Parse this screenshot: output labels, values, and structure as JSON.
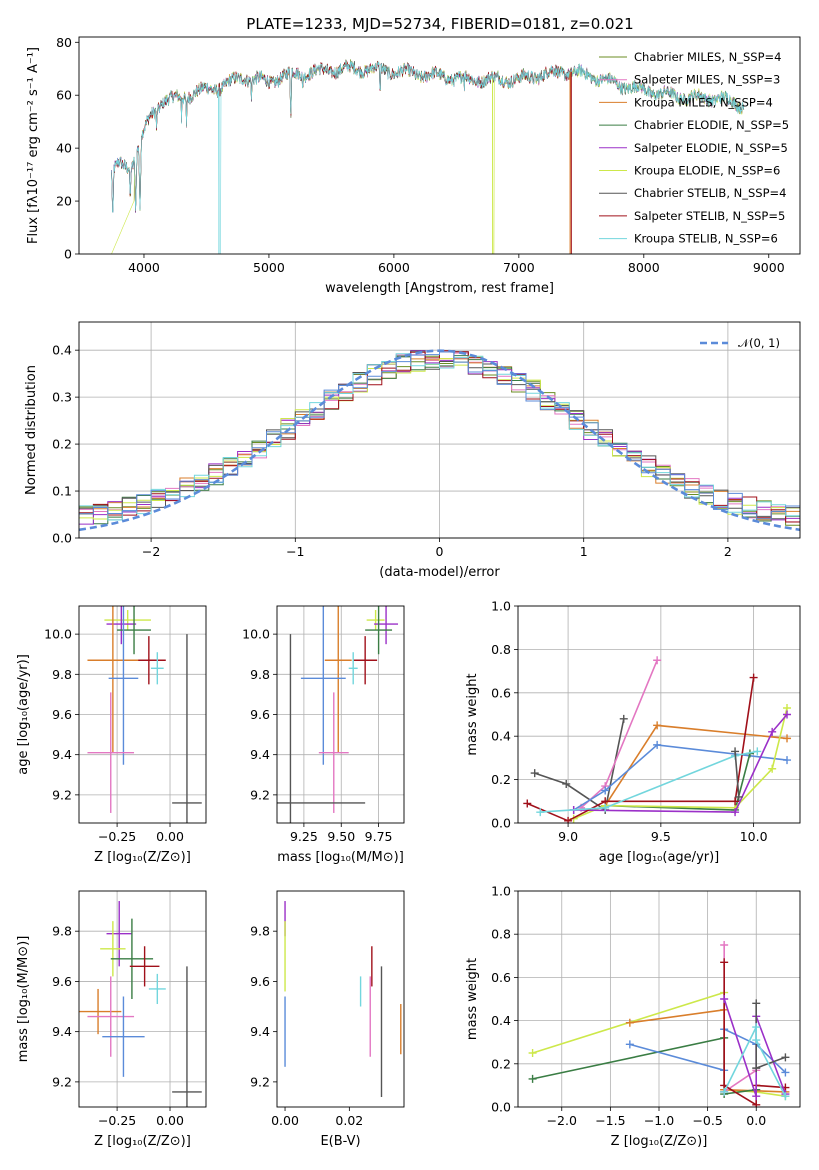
{
  "colors": {
    "chabrier_miles": "#6b8e23",
    "salpeter_miles": "#e377c2",
    "kroupa_miles": "#d97e2b",
    "chabrier_elodie": "#3a7d44",
    "salpeter_elodie": "#9b30c8",
    "kroupa_elodie": "#cde84a",
    "chabrier_stelib": "#555555",
    "salpeter_stelib": "#a0101a",
    "kroupa_stelib": "#72d6dd",
    "blue": "#5b8bd9",
    "grid": "#b0b0b0"
  },
  "chart_data": [
    {
      "id": "spectrum",
      "type": "line",
      "title": "PLATE=1233, MJD=52734, FIBERID=0181, z=0.021",
      "xlabel": "wavelength [Angstrom, rest frame]",
      "ylabel": "Flux [fλ10⁻¹⁷ erg cm⁻² s⁻¹ A⁻¹]",
      "xlim": [
        3480,
        9250
      ],
      "ylim": [
        0,
        82
      ],
      "xticks": [
        4000,
        5000,
        6000,
        7000,
        8000,
        9000
      ],
      "yticks": [
        0,
        20,
        40,
        60,
        80
      ],
      "grid": false,
      "legend_position": "top-right",
      "legend": [
        {
          "label": "Chabrier MILES, N_SSP=4",
          "color_key": "chabrier_miles"
        },
        {
          "label": "Salpeter MILES, N_SSP=3",
          "color_key": "salpeter_miles"
        },
        {
          "label": "Kroupa MILES, N_SSP=4",
          "color_key": "kroupa_miles"
        },
        {
          "label": "Chabrier ELODIE, N_SSP=5",
          "color_key": "chabrier_elodie"
        },
        {
          "label": "Salpeter ELODIE, N_SSP=5",
          "color_key": "salpeter_elodie"
        },
        {
          "label": "Kroupa ELODIE, N_SSP=6",
          "color_key": "kroupa_elodie"
        },
        {
          "label": "Chabrier STELIB, N_SSP=4",
          "color_key": "chabrier_stelib"
        },
        {
          "label": "Salpeter STELIB, N_SSP=5",
          "color_key": "salpeter_stelib"
        },
        {
          "label": "Kroupa STELIB, N_SSP=6",
          "color_key": "kroupa_stelib"
        }
      ],
      "continuum": [
        [
          3740,
          30
        ],
        [
          3800,
          34
        ],
        [
          3900,
          33
        ],
        [
          3980,
          44
        ],
        [
          4050,
          52
        ],
        [
          4150,
          58
        ],
        [
          4300,
          59
        ],
        [
          4400,
          61
        ],
        [
          4600,
          63
        ],
        [
          4800,
          67
        ],
        [
          5000,
          65
        ],
        [
          5100,
          67
        ],
        [
          5200,
          68
        ],
        [
          5400,
          69
        ],
        [
          5600,
          70
        ],
        [
          5800,
          70
        ],
        [
          6000,
          69
        ],
        [
          6200,
          68
        ],
        [
          6400,
          67
        ],
        [
          6600,
          66
        ],
        [
          6800,
          66
        ],
        [
          7000,
          66
        ],
        [
          7200,
          68
        ],
        [
          7400,
          69
        ],
        [
          7600,
          67
        ],
        [
          7800,
          64
        ],
        [
          8000,
          62
        ],
        [
          8200,
          60
        ],
        [
          8400,
          59
        ],
        [
          8600,
          59
        ],
        [
          8800,
          56
        ]
      ],
      "dips": [
        [
          3750,
          12
        ],
        [
          3890,
          18
        ],
        [
          3933,
          14
        ],
        [
          3968,
          17
        ],
        [
          4101,
          45
        ],
        [
          4300,
          50
        ],
        [
          4340,
          48
        ],
        [
          4861,
          56
        ],
        [
          5175,
          50
        ],
        [
          5270,
          59
        ],
        [
          5890,
          58
        ],
        [
          6563,
          60
        ]
      ],
      "cutoffs": [
        {
          "color_key": "kroupa_elodie",
          "from": 3740,
          "to": 3920
        },
        {
          "color_key": "kroupa_stelib",
          "from": 4600,
          "to": 4615
        },
        {
          "color_key": "kroupa_elodie",
          "from": 6790,
          "to": 6800
        },
        {
          "color_key": "kroupa_miles",
          "from": 7410,
          "to": 9250
        },
        {
          "color_key": "salpeter_stelib",
          "from": 7420,
          "to": 9250
        }
      ]
    },
    {
      "id": "residuals",
      "type": "line",
      "xlabel": "(data-model)/error",
      "ylabel": "Normed distribution",
      "xlim": [
        -2.5,
        2.5
      ],
      "ylim": [
        0,
        0.46
      ],
      "xticks": [
        -2,
        -1,
        0,
        1,
        2
      ],
      "yticks": [
        0.0,
        0.1,
        0.2,
        0.3,
        0.4
      ],
      "grid": true,
      "legend_position": "top-right",
      "reference_curve": {
        "label": "𝒩(0, 1)",
        "mean": 0,
        "sigma": 1,
        "color_key": "blue"
      },
      "histogram_bin_width": 0.1,
      "histogram_colors": [
        "chabrier_miles",
        "salpeter_miles",
        "kroupa_miles",
        "chabrier_elodie",
        "salpeter_elodie",
        "kroupa_elodie",
        "chabrier_stelib",
        "salpeter_stelib",
        "kroupa_stelib",
        "blue"
      ]
    },
    {
      "id": "age-vs-Z",
      "type": "scatter",
      "xlabel": "Z [log₁₀(Z/Z⊙)]",
      "ylabel": "age  [log₁₀(age/yr)]",
      "xlim": [
        -0.43,
        0.17
      ],
      "ylim": [
        9.06,
        10.14
      ],
      "xticks": [
        -0.25,
        0.0
      ],
      "ytick_values": [
        9.2,
        9.4,
        9.6,
        9.8,
        10.0
      ],
      "grid": true,
      "points": [
        {
          "color_key": "kroupa_elodie",
          "x": -0.2,
          "xerr": 0.11,
          "y": 10.07,
          "yerr": 0.05
        },
        {
          "color_key": "salpeter_elodie",
          "x": -0.23,
          "xerr": 0.07,
          "y": 10.05,
          "yerr": 0.1
        },
        {
          "color_key": "chabrier_elodie",
          "x": -0.17,
          "xerr": 0.08,
          "y": 10.02,
          "yerr": 0.12
        },
        {
          "color_key": "salpeter_stelib",
          "x": -0.1,
          "xerr": 0.08,
          "y": 9.87,
          "yerr": 0.12
        },
        {
          "color_key": "kroupa_miles",
          "x": -0.27,
          "xerr": 0.12,
          "y": 9.87,
          "yerr": 0.46
        },
        {
          "color_key": "kroupa_stelib",
          "x": -0.06,
          "xerr": 0.03,
          "y": 9.83,
          "yerr": 0.08
        },
        {
          "color_key": "blue",
          "x": -0.22,
          "xerr": 0.07,
          "y": 9.78,
          "yerr": 0.43
        },
        {
          "color_key": "salpeter_miles",
          "x": -0.28,
          "xerr": 0.11,
          "y": 9.41,
          "yerr": 0.3
        },
        {
          "color_key": "chabrier_stelib",
          "x": 0.08,
          "xerr": 0.07,
          "y": 9.16,
          "yerr": 0.84
        }
      ]
    },
    {
      "id": "age-vs-mass",
      "type": "scatter",
      "xlabel": "mass [log₁₀(M/M⊙)]",
      "ylabel": "",
      "xlim": [
        9.07,
        9.92
      ],
      "ylim": [
        9.06,
        10.14
      ],
      "xticks": [
        9.25,
        9.5,
        9.75
      ],
      "ytick_values": [
        9.2,
        9.4,
        9.6,
        9.8,
        10.0
      ],
      "grid": true,
      "points": [
        {
          "color_key": "kroupa_elodie",
          "x": 9.73,
          "xerr": 0.06,
          "y": 10.07,
          "yerr": 0.05
        },
        {
          "color_key": "salpeter_elodie",
          "x": 9.8,
          "xerr": 0.08,
          "y": 10.05,
          "yerr": 0.1
        },
        {
          "color_key": "chabrier_elodie",
          "x": 9.75,
          "xerr": 0.09,
          "y": 10.02,
          "yerr": 0.12
        },
        {
          "color_key": "salpeter_stelib",
          "x": 9.66,
          "xerr": 0.08,
          "y": 9.87,
          "yerr": 0.12
        },
        {
          "color_key": "kroupa_miles",
          "x": 9.48,
          "xerr": 0.09,
          "y": 9.87,
          "yerr": 0.46
        },
        {
          "color_key": "kroupa_stelib",
          "x": 9.58,
          "xerr": 0.03,
          "y": 9.83,
          "yerr": 0.08
        },
        {
          "color_key": "blue",
          "x": 9.38,
          "xerr": 0.15,
          "y": 9.78,
          "yerr": 0.43
        },
        {
          "color_key": "salpeter_miles",
          "x": 9.45,
          "xerr": 0.1,
          "y": 9.41,
          "yerr": 0.3
        },
        {
          "color_key": "chabrier_stelib",
          "x": 9.16,
          "xerr": 0.5,
          "y": 9.16,
          "yerr": 0.84
        }
      ]
    },
    {
      "id": "weight-vs-age",
      "type": "line",
      "xlabel": "age  [log₁₀(age/yr)]",
      "ylabel": "mass weight",
      "xlim": [
        8.73,
        10.25
      ],
      "ylim": [
        0,
        1.0
      ],
      "xticks": [
        9.0,
        9.5,
        10.0
      ],
      "yticks": [
        0.0,
        0.2,
        0.4,
        0.6,
        0.8,
        1.0
      ],
      "grid": true,
      "series": [
        {
          "color_key": "chabrier_stelib",
          "x": [
            8.82,
            8.99,
            9.2,
            9.3
          ],
          "y": [
            0.23,
            0.18,
            0.06,
            0.48
          ]
        },
        {
          "color_key": "salpeter_miles",
          "x": [
            9.07,
            9.2,
            9.48
          ],
          "y": [
            0.07,
            0.17,
            0.75
          ]
        },
        {
          "color_key": "kroupa_miles",
          "x": [
            9.2,
            9.48,
            10.18
          ],
          "y": [
            0.08,
            0.45,
            0.39
          ]
        },
        {
          "color_key": "blue",
          "x": [
            9.03,
            9.2,
            9.48,
            10.18
          ],
          "y": [
            0.06,
            0.15,
            0.36,
            0.29
          ]
        },
        {
          "color_key": "chabrier_elodie",
          "x": [
            9.2,
            9.9,
            9.98
          ],
          "y": [
            0.08,
            0.06,
            0.32
          ]
        },
        {
          "color_key": "kroupa_elodie",
          "x": [
            9.03,
            9.2,
            9.9,
            10.1,
            10.18
          ],
          "y": [
            0.02,
            0.08,
            0.07,
            0.25,
            0.53
          ]
        },
        {
          "color_key": "salpeter_elodie",
          "x": [
            9.03,
            9.9,
            10.1,
            10.18
          ],
          "y": [
            0.06,
            0.05,
            0.42,
            0.5
          ]
        },
        {
          "color_key": "salpeter_stelib",
          "x": [
            8.78,
            9.0,
            9.2,
            9.9,
            10.0
          ],
          "y": [
            0.09,
            0.01,
            0.1,
            0.1,
            0.67
          ]
        },
        {
          "color_key": "kroupa_stelib",
          "x": [
            8.85,
            9.2,
            9.9,
            10.02
          ],
          "y": [
            0.05,
            0.07,
            0.31,
            0.33
          ]
        },
        {
          "color_key": "chabrier_stelib",
          "x": [
            9.9,
            9.92
          ],
          "y": [
            0.33,
            0.12
          ]
        }
      ]
    },
    {
      "id": "mass-vs-Z",
      "type": "scatter",
      "xlabel": "Z [log₁₀(Z/Z⊙)]",
      "ylabel": "mass [log₁₀(M/M⊙)]",
      "xlim": [
        -0.43,
        0.17
      ],
      "ylim": [
        9.1,
        9.96
      ],
      "xticks": [
        -0.25,
        0.0
      ],
      "ytick_values": [
        9.2,
        9.4,
        9.6,
        9.8
      ],
      "grid": true,
      "points": [
        {
          "color_key": "salpeter_elodie",
          "x": -0.24,
          "xerr": 0.06,
          "y": 9.79,
          "yerr": 0.13
        },
        {
          "color_key": "kroupa_elodie",
          "x": -0.27,
          "xerr": 0.06,
          "y": 9.73,
          "yerr": 0.11
        },
        {
          "color_key": "chabrier_elodie",
          "x": -0.18,
          "xerr": 0.1,
          "y": 9.69,
          "yerr": 0.16
        },
        {
          "color_key": "salpeter_stelib",
          "x": -0.12,
          "xerr": 0.07,
          "y": 9.66,
          "yerr": 0.08
        },
        {
          "color_key": "kroupa_stelib",
          "x": -0.06,
          "xerr": 0.04,
          "y": 9.57,
          "yerr": 0.06
        },
        {
          "color_key": "kroupa_miles",
          "x": -0.34,
          "xerr": 0.11,
          "y": 9.48,
          "yerr": 0.09
        },
        {
          "color_key": "salpeter_miles",
          "x": -0.28,
          "xerr": 0.11,
          "y": 9.46,
          "yerr": 0.16
        },
        {
          "color_key": "blue",
          "x": -0.22,
          "xerr": 0.1,
          "y": 9.38,
          "yerr": 0.16
        },
        {
          "color_key": "chabrier_stelib",
          "x": 0.08,
          "xerr": 0.07,
          "y": 9.16,
          "yerr": 0.5
        }
      ]
    },
    {
      "id": "mass-vs-ebv",
      "type": "scatter",
      "xlabel": "E(B-V)",
      "ylabel": "",
      "xlim": [
        -0.0025,
        0.037
      ],
      "ylim": [
        9.1,
        9.96
      ],
      "xticks": [
        0.0,
        0.02
      ],
      "ytick_values": [
        9.2,
        9.4,
        9.6,
        9.8
      ],
      "grid": false,
      "points": [
        {
          "color_key": "salpeter_elodie",
          "x": 0.0,
          "xerr": 0,
          "y": 9.85,
          "yerr": 0.07
        },
        {
          "color_key": "kroupa_elodie",
          "x": 0.0,
          "xerr": 0,
          "y": 9.7,
          "yerr": 0.14
        },
        {
          "color_key": "blue",
          "x": 0.0,
          "xerr": 0,
          "y": 9.4,
          "yerr": 0.14
        },
        {
          "color_key": "kroupa_stelib",
          "x": 0.0235,
          "xerr": 0,
          "y": 9.56,
          "yerr": 0.06
        },
        {
          "color_key": "salpeter_stelib",
          "x": 0.027,
          "xerr": 0,
          "y": 9.66,
          "yerr": 0.08
        },
        {
          "color_key": "salpeter_miles",
          "x": 0.0265,
          "xerr": 0,
          "y": 9.46,
          "yerr": 0.16
        },
        {
          "color_key": "chabrier_stelib",
          "x": 0.03,
          "xerr": 0,
          "y": 9.4,
          "yerr": 0.26
        },
        {
          "color_key": "kroupa_miles",
          "x": 0.036,
          "xerr": 0,
          "y": 9.41,
          "yerr": 0.1
        }
      ]
    },
    {
      "id": "weight-vs-Z",
      "type": "line",
      "xlabel": "Z [log₁₀(Z/Z⊙)]",
      "ylabel": "mass weight",
      "xlim": [
        -2.45,
        0.45
      ],
      "ylim": [
        0,
        1.0
      ],
      "xticks": [
        -2.0,
        -1.5,
        -1.0,
        -0.5,
        0.0
      ],
      "yticks": [
        0.0,
        0.2,
        0.4,
        0.6,
        0.8,
        1.0
      ],
      "grid": true,
      "series": [
        {
          "color_key": "kroupa_elodie",
          "x": [
            -2.3,
            -0.33,
            -0.33,
            0.0,
            0.3
          ],
          "y": [
            0.25,
            0.53,
            0.08,
            0.07,
            0.05
          ]
        },
        {
          "color_key": "kroupa_miles",
          "x": [
            -1.3,
            -0.33,
            -0.33,
            0.3
          ],
          "y": [
            0.39,
            0.45,
            0.08,
            0.07
          ]
        },
        {
          "color_key": "chabrier_elodie",
          "x": [
            -2.3,
            -0.33,
            -0.33,
            0.0
          ],
          "y": [
            0.13,
            0.32,
            0.06,
            0.08
          ]
        },
        {
          "color_key": "blue",
          "x": [
            -1.3,
            -0.33,
            -0.33,
            0.0,
            0.3
          ],
          "y": [
            0.29,
            0.17,
            0.36,
            0.29,
            0.16
          ]
        },
        {
          "color_key": "salpeter_miles",
          "x": [
            -0.33,
            -0.33,
            0.0
          ],
          "y": [
            0.75,
            0.07,
            0.17
          ]
        },
        {
          "color_key": "salpeter_stelib",
          "x": [
            -0.33,
            -0.33,
            0.0,
            0.0,
            0.3
          ],
          "y": [
            0.67,
            0.1,
            0.01,
            0.1,
            0.09
          ]
        },
        {
          "color_key": "salpeter_elodie",
          "x": [
            -0.33,
            0.0,
            0.0,
            0.3
          ],
          "y": [
            0.5,
            0.05,
            0.42,
            0.06
          ]
        },
        {
          "color_key": "chabrier_stelib",
          "x": [
            0.0,
            0.0,
            0.3
          ],
          "y": [
            0.48,
            0.18,
            0.23
          ]
        },
        {
          "color_key": "kroupa_stelib",
          "x": [
            -0.33,
            0.0,
            0.0,
            0.3
          ],
          "y": [
            0.07,
            0.37,
            0.31,
            0.05
          ]
        }
      ]
    }
  ]
}
